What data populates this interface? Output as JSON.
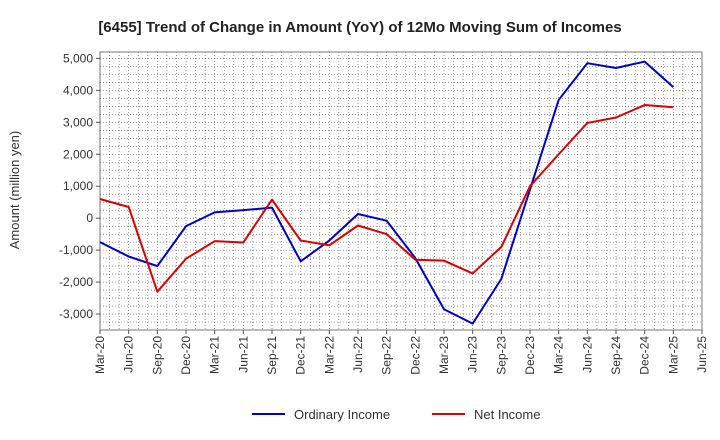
{
  "chart_data": {
    "type": "line",
    "title": "[6455]  Trend of Change in Amount (YoY) of 12Mo Moving Sum of Incomes",
    "xlabel": "",
    "ylabel": "Amount (million yen)",
    "ylim": [
      -3500,
      5200
    ],
    "yticks": [
      5000,
      4000,
      3000,
      2000,
      1000,
      0,
      -1000,
      -2000,
      -3000
    ],
    "ytick_labels": [
      "5,000",
      "4,000",
      "3,000",
      "2,000",
      "1,000",
      "0",
      "-1,000",
      "-2,000",
      "-3,000"
    ],
    "x_tick_labels": [
      "Mar-20",
      "Jun-20",
      "Sep-20",
      "Dec-20",
      "Mar-21",
      "Jun-21",
      "Sep-21",
      "Dec-21",
      "Mar-22",
      "Jun-22",
      "Sep-22",
      "Dec-22",
      "Mar-23",
      "Jun-23",
      "Sep-23",
      "Dec-23",
      "Mar-24",
      "Jun-24",
      "Sep-24",
      "Dec-24",
      "Mar-25",
      "Jun-25"
    ],
    "categories": [
      "Mar-20",
      "Jun-20",
      "Sep-20",
      "Dec-20",
      "Mar-21",
      "Jun-21",
      "Sep-21",
      "Dec-21",
      "Mar-22",
      "Jun-22",
      "Sep-22",
      "Dec-22",
      "Mar-23",
      "Jun-23",
      "Sep-23",
      "Dec-23",
      "Mar-24",
      "Jun-24",
      "Sep-24",
      "Dec-24",
      "Mar-25"
    ],
    "grid": true,
    "legend_position": "bottom",
    "series": [
      {
        "name": "Ordinary Income",
        "color": "#0000cc",
        "values": [
          -750,
          -1200,
          -1500,
          -250,
          180,
          250,
          330,
          -1350,
          -700,
          130,
          -80,
          -1250,
          -2850,
          -3300,
          -1900,
          900,
          3700,
          4850,
          4700,
          4900,
          4100
        ]
      },
      {
        "name": "Net Income",
        "color": "#dd0000",
        "values": [
          600,
          350,
          -2300,
          -1270,
          -720,
          -760,
          580,
          -700,
          -850,
          -230,
          -500,
          -1300,
          -1330,
          -1730,
          -900,
          1000,
          2000,
          2980,
          3150,
          3540,
          3470
        ]
      }
    ]
  }
}
